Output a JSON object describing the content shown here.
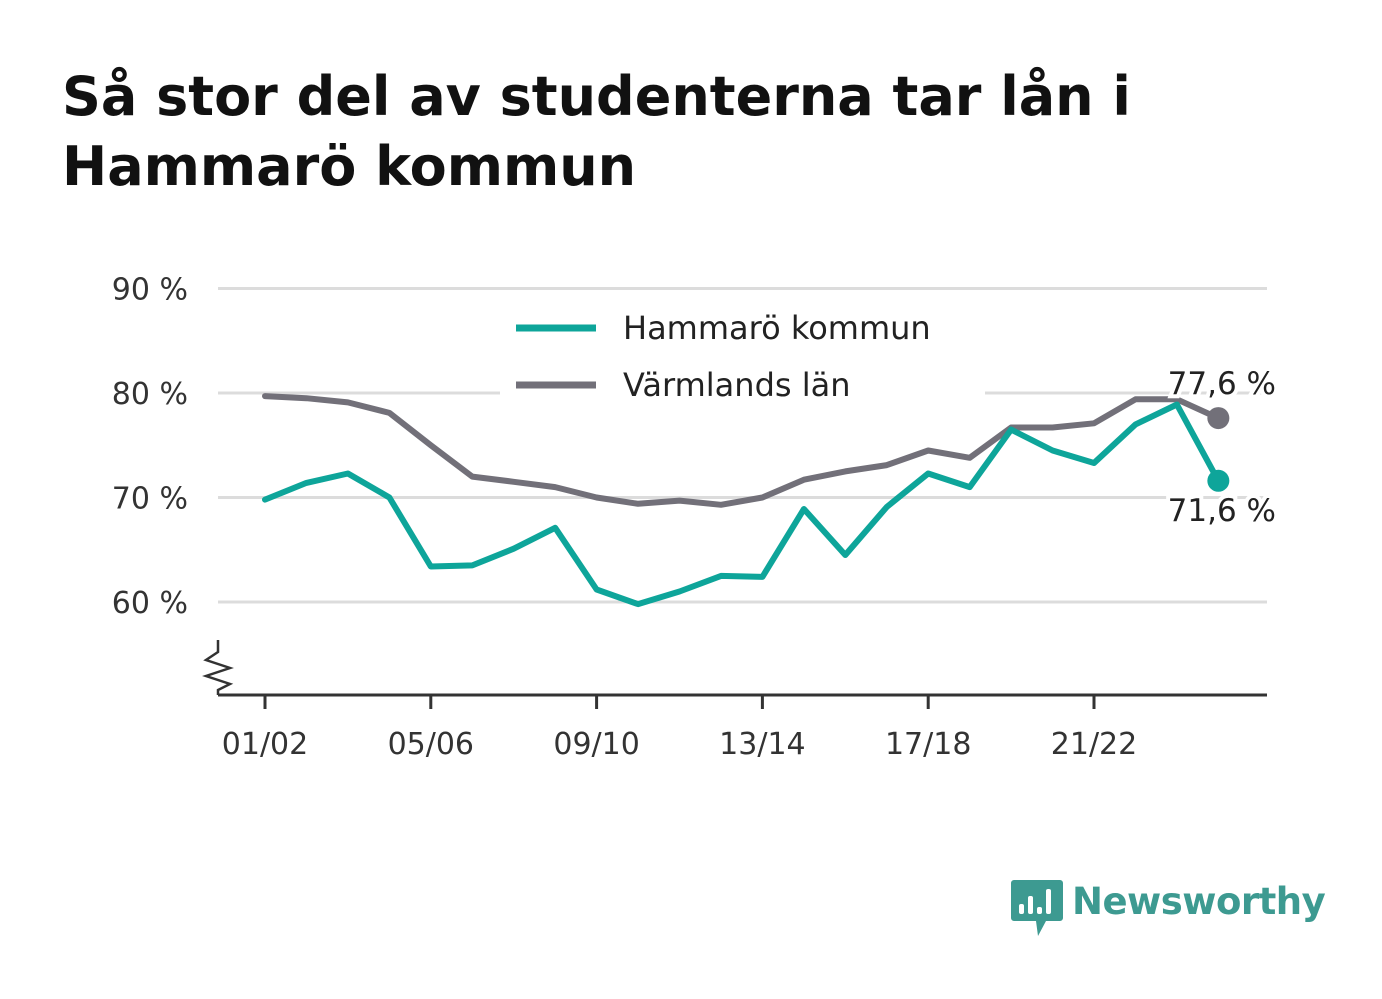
{
  "title": "Så stor del av studenterna tar lån i Hammarö kommun",
  "brand": {
    "name": "Newsworthy",
    "icon": "newsworthy-chart-icon",
    "color": "#3d9a91"
  },
  "chart_data": {
    "type": "line",
    "x": [
      "01/02",
      "02/03",
      "03/04",
      "04/05",
      "05/06",
      "06/07",
      "07/08",
      "08/09",
      "09/10",
      "10/11",
      "11/12",
      "12/13",
      "13/14",
      "14/15",
      "15/16",
      "16/17",
      "17/18",
      "18/19",
      "19/20",
      "20/21",
      "21/22",
      "22/23",
      "23/24",
      "24/25"
    ],
    "x_tick_labels": [
      "01/02",
      "05/06",
      "09/10",
      "13/14",
      "17/18",
      "21/22"
    ],
    "y_ticks": [
      60,
      70,
      80,
      90
    ],
    "y_tick_labels": [
      "60 %",
      "70 %",
      "80 %",
      "90 %"
    ],
    "ylim": [
      51,
      90
    ],
    "axis_break": true,
    "grid": true,
    "legend_position": "top-center",
    "series": [
      {
        "name": "Hammarö kommun",
        "color": "#0ea59a",
        "values": [
          69.8,
          71.4,
          72.3,
          70.0,
          63.4,
          63.5,
          65.1,
          67.1,
          61.2,
          59.8,
          61.0,
          62.5,
          62.4,
          68.9,
          64.5,
          69.1,
          72.3,
          71.0,
          76.5,
          74.5,
          73.3,
          77.0,
          78.9,
          71.6
        ],
        "end_label": "71,6 %"
      },
      {
        "name": "Värmlands län",
        "color": "#727079",
        "values": [
          79.7,
          79.5,
          79.1,
          78.1,
          75.0,
          72.0,
          71.5,
          71.0,
          70.0,
          69.4,
          69.7,
          69.3,
          70.0,
          71.7,
          72.5,
          73.1,
          74.5,
          73.8,
          76.7,
          76.7,
          77.1,
          79.4,
          79.4,
          77.6
        ],
        "end_label": "77,6 %"
      }
    ]
  }
}
